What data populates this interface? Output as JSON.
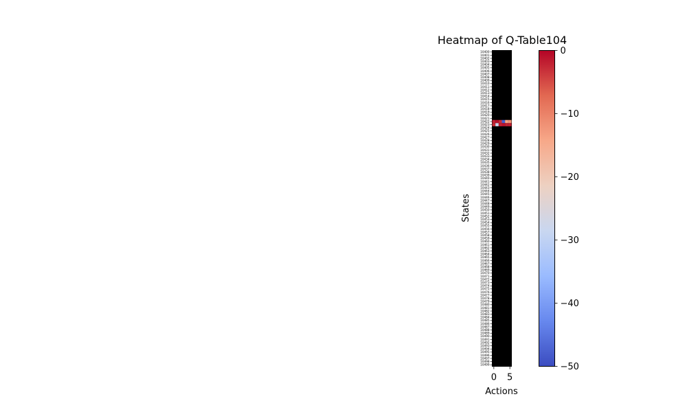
{
  "chart_data": {
    "type": "heatmap",
    "title": "Heatmap of Q-Table104",
    "xlabel": "Actions",
    "ylabel": "States",
    "x_ticks": [
      0,
      5
    ],
    "n_actions": 6,
    "state_start": 10400,
    "state_end": 10499,
    "background_value_color": "#000000",
    "colormap": "coolwarm",
    "colorbar": {
      "min": -50,
      "max": 0,
      "ticks": [
        0,
        -10,
        -20,
        -30,
        -40,
        -50
      ],
      "tick_labels": [
        "0",
        "−10",
        "−20",
        "−30",
        "−40",
        "−50"
      ],
      "stops": [
        "#3b4cc0",
        "#6788ee",
        "#9abbff",
        "#c9d7f0",
        "#edd1c2",
        "#f7a889",
        "#e26952",
        "#b40426"
      ]
    },
    "nonzero_rows": [
      {
        "state": 10422,
        "values": [
          -2,
          -1,
          -3,
          -48,
          -14,
          -12
        ]
      },
      {
        "state": 10423,
        "values": [
          -3,
          -28,
          -2,
          -1,
          -2,
          -2
        ]
      }
    ]
  }
}
